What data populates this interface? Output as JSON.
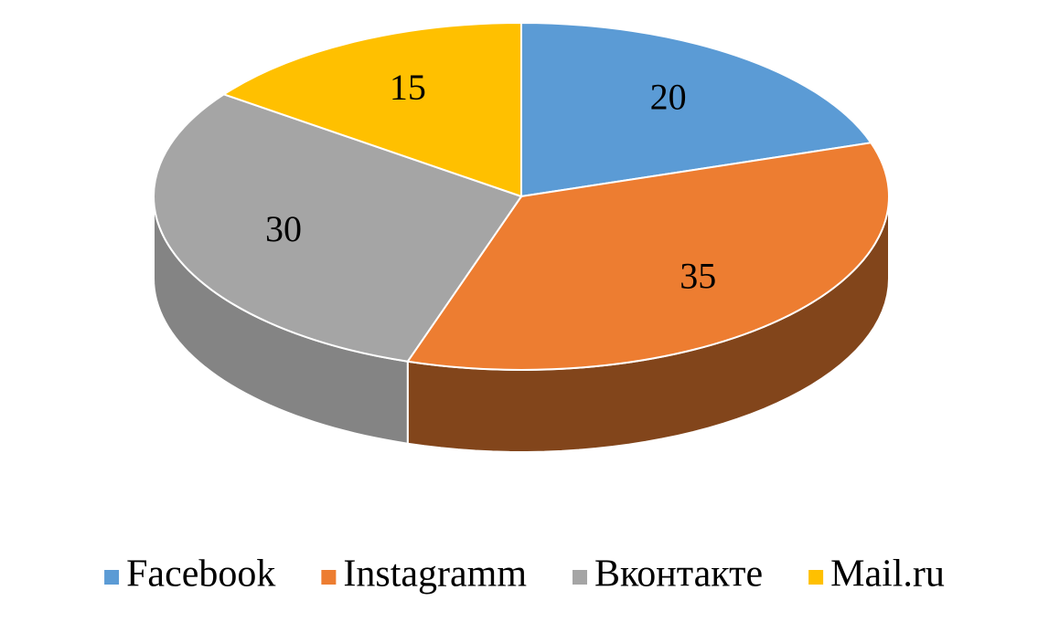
{
  "chart_data": {
    "type": "pie",
    "categories": [
      "Facebook",
      "Instagramm",
      "Вконтакте",
      "Mail.ru"
    ],
    "values": [
      20,
      35,
      30,
      15
    ],
    "colors": [
      "#5b9bd5",
      "#ed7d31",
      "#a5a5a5",
      "#ffc000"
    ],
    "legend": "bottom"
  }
}
